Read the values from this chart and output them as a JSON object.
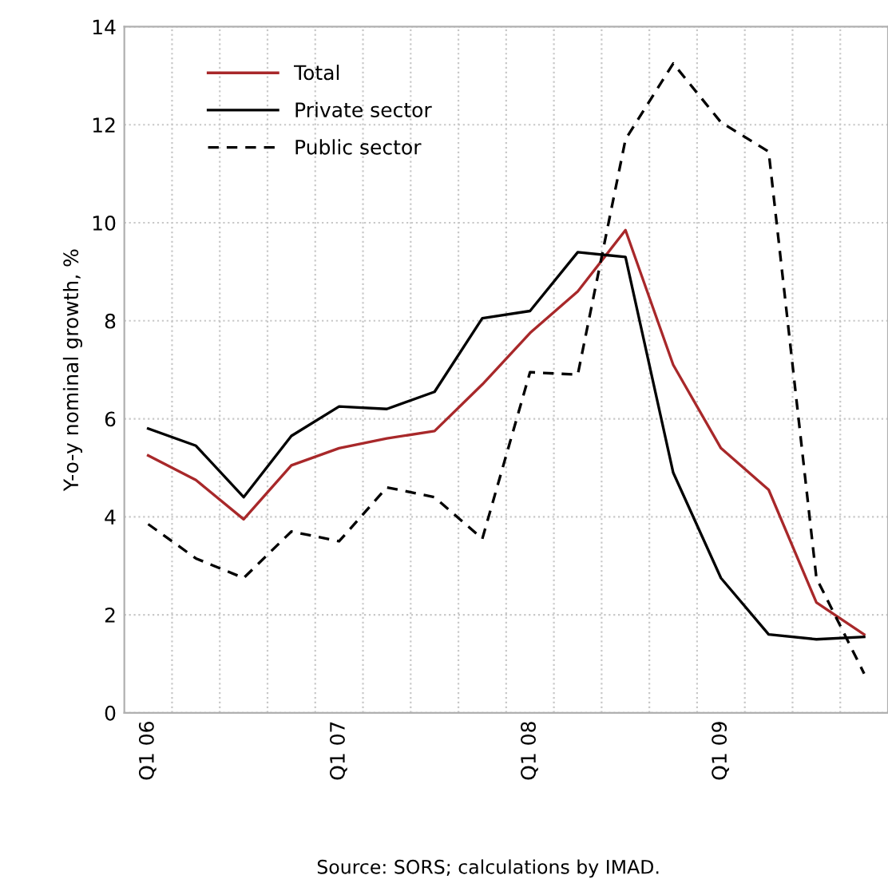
{
  "chart_data": {
    "type": "line",
    "ylabel": "Y-o-y nominal growth, %",
    "categories": [
      "Q1 06",
      null,
      null,
      null,
      "Q1 07",
      null,
      null,
      null,
      "Q1 08",
      null,
      null,
      null,
      "Q1 09",
      null,
      null,
      null
    ],
    "series": [
      {
        "name": "Total",
        "color": "#a8282a",
        "line_style": "solid",
        "values": [
          5.25,
          4.75,
          3.95,
          5.05,
          5.4,
          5.6,
          5.75,
          6.7,
          7.75,
          8.6,
          9.85,
          7.1,
          5.4,
          4.55,
          2.25,
          1.6
        ]
      },
      {
        "name": "Private sector",
        "color": "#000000",
        "line_style": "solid",
        "values": [
          5.8,
          5.45,
          4.4,
          5.65,
          6.25,
          6.2,
          6.55,
          8.05,
          8.2,
          9.4,
          9.3,
          4.9,
          2.75,
          1.6,
          1.5,
          1.55
        ]
      },
      {
        "name": "Public sector",
        "color": "#000000",
        "line_style": "dashed",
        "values": [
          3.85,
          3.15,
          2.75,
          3.7,
          3.5,
          4.6,
          4.4,
          3.55,
          6.95,
          6.9,
          11.7,
          13.25,
          12.05,
          11.45,
          2.75,
          0.8
        ]
      }
    ],
    "ylim": [
      0,
      14
    ],
    "yticks": [
      0,
      2,
      4,
      6,
      8,
      10,
      12,
      14
    ],
    "grid": true,
    "legend": "top left",
    "marker": "none",
    "annotations": [
      "Source: SORS; calculations by IMAD."
    ]
  }
}
